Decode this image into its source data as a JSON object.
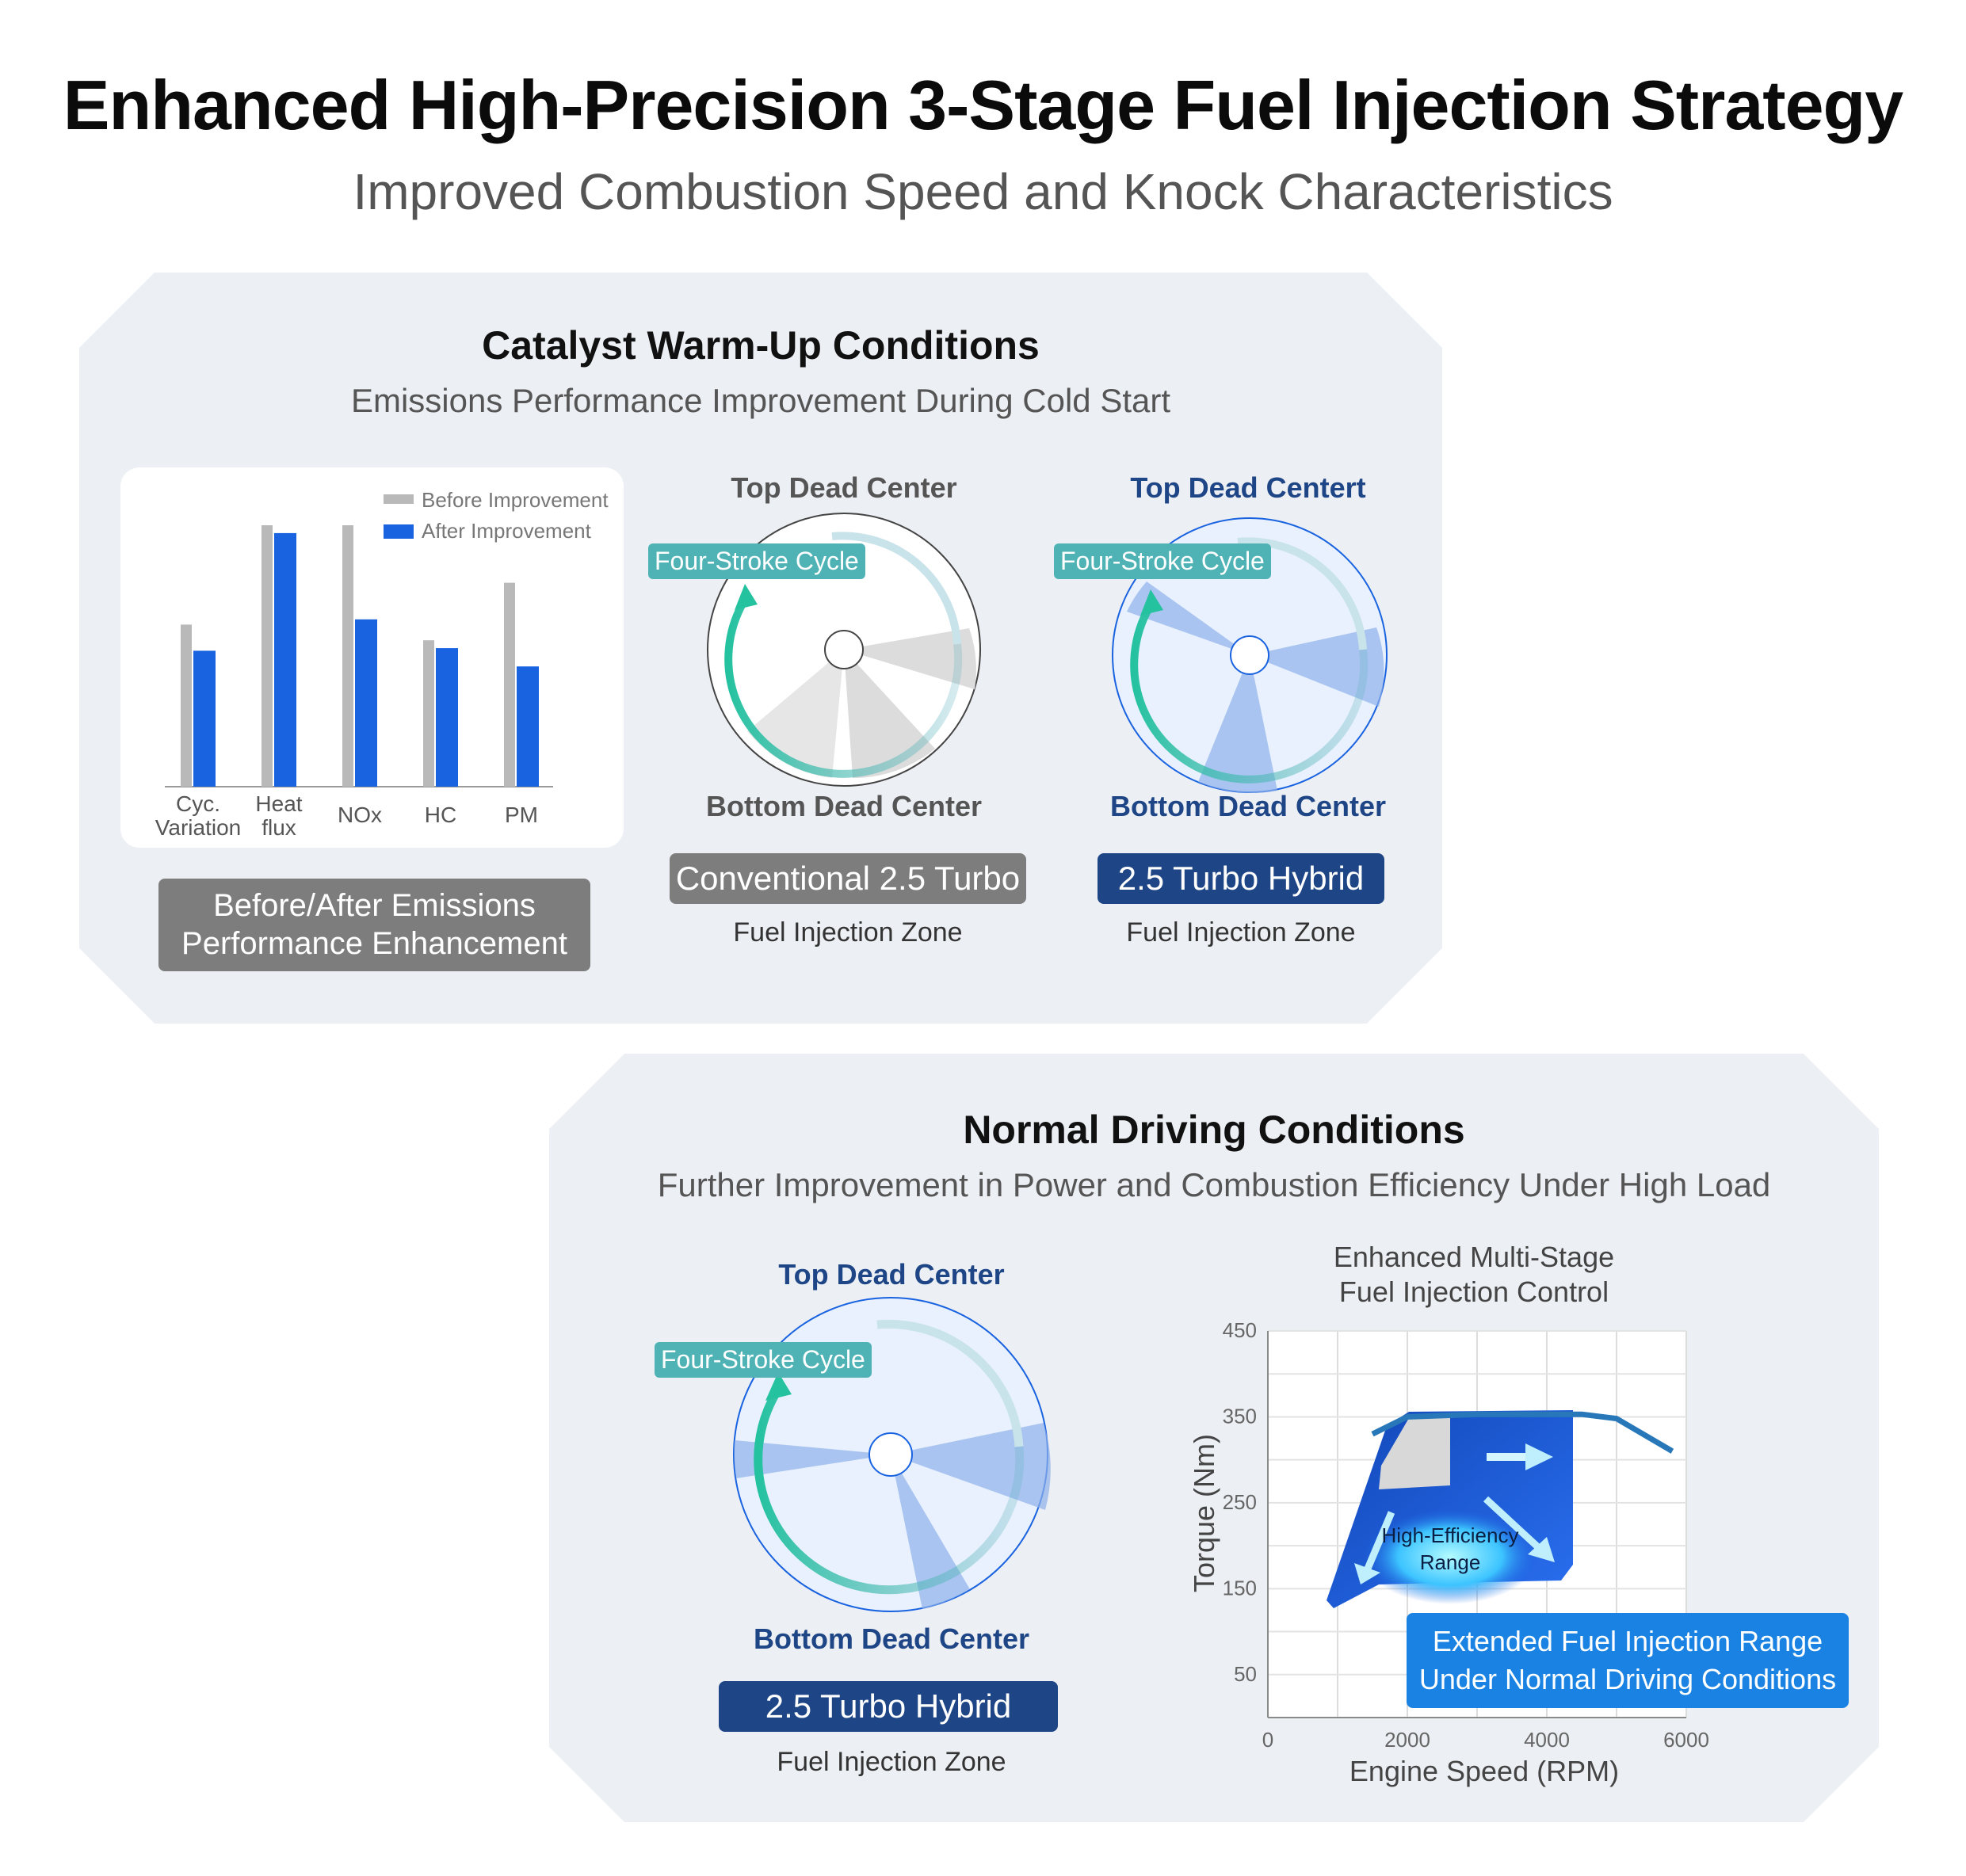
{
  "header": {
    "title": "Enhanced High-Precision 3-Stage Fuel Injection Strategy",
    "subtitle": "Improved Combustion Speed and Knock Characteristics"
  },
  "catalyst_section": {
    "title": "Catalyst Warm-Up Conditions",
    "subtitle": "Emissions Performance Improvement During Cold Start",
    "badge_line1": "Before/After Emissions",
    "badge_line2": "Performance Enhancement",
    "conventional": {
      "top_label": "Top Dead Center",
      "cycle_label": "Four-Stroke Cycle",
      "bottom_label": "Bottom Dead Center",
      "model_badge": "Conventional 2.5 Turbo",
      "zone_label": "Fuel Injection Zone"
    },
    "hybrid": {
      "top_label": "Top Dead Centert",
      "cycle_label": "Four-Stroke Cycle",
      "bottom_label": "Bottom Dead Center",
      "model_badge": "2.5 Turbo Hybrid",
      "zone_label": "Fuel Injection Zone"
    }
  },
  "normal_section": {
    "title": "Normal Driving Conditions",
    "subtitle": "Further Improvement in Power and Combustion Efficiency Under High Load",
    "diagram": {
      "top_label": "Top Dead Center",
      "cycle_label": "Four-Stroke Cycle",
      "bottom_label": "Bottom Dead Center",
      "model_badge": "2.5 Turbo Hybrid",
      "zone_label": "Fuel Injection Zone"
    },
    "chart_title_line1": "Enhanced Multi-Stage",
    "chart_title_line2": "Fuel Injection Control",
    "chart_inner_label_line1": "High-Efficiency",
    "chart_inner_label_line2": "Range",
    "callout_line1": "Extended Fuel Injection Range",
    "callout_line2": "Under Normal Driving Conditions"
  },
  "colors": {
    "before": "#b9b9b9",
    "after": "#1a63e0",
    "teal": "#4fb3b5",
    "navy": "#1e4585",
    "callout": "#1a82e2"
  },
  "chart_data": [
    {
      "type": "bar",
      "categories": [
        "Cyc.\nVariation",
        "Heat\nflux",
        "NOx",
        "HC",
        "PM"
      ],
      "series": [
        {
          "name": "Before Improvement",
          "values": [
            62,
            100,
            100,
            56,
            78
          ]
        },
        {
          "name": "After Improvement",
          "values": [
            52,
            97,
            64,
            53,
            46
          ]
        }
      ],
      "ylim": [
        0,
        100
      ],
      "legend": "top-right"
    },
    {
      "type": "line",
      "xlabel": "Engine Speed (RPM)",
      "ylabel": "Torque (Nm)",
      "xticks": [
        "0",
        "2000",
        "4000",
        "6000"
      ],
      "yticks": [
        "450",
        "350",
        "250",
        "150",
        "50"
      ],
      "xlim": [
        0,
        6000
      ],
      "ylim": [
        0,
        450
      ],
      "series": [
        {
          "x": [
            1500,
            2000,
            3000,
            4000,
            4500,
            5000,
            5800
          ],
          "y": [
            330,
            350,
            353,
            353,
            353,
            348,
            310
          ]
        }
      ]
    }
  ]
}
